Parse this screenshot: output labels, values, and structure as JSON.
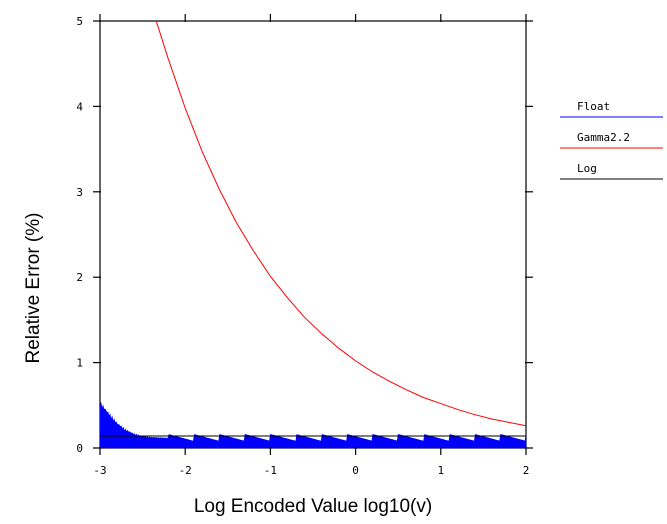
{
  "chart_data": {
    "type": "line",
    "title": "",
    "xlabel": "Log Encoded Value log10(v)",
    "ylabel": "Relative Error (%)",
    "xlim": [
      -3,
      2
    ],
    "ylim": [
      0,
      5
    ],
    "xticks": [
      -3,
      -2,
      -1,
      0,
      1,
      2
    ],
    "yticks": [
      0,
      1,
      2,
      3,
      4,
      5
    ],
    "grid": false,
    "legend_position": "right",
    "series": [
      {
        "name": "Float",
        "color": "#0000ff",
        "style": "dense-sawtooth-band",
        "points": [
          [
            -3.0,
            0.55
          ],
          [
            -2.9,
            0.42
          ],
          [
            -2.8,
            0.3
          ],
          [
            -2.7,
            0.22
          ],
          [
            -2.6,
            0.17
          ],
          [
            -2.5,
            0.14
          ],
          [
            -2.4,
            0.13
          ],
          [
            -2.2,
            0.12
          ],
          [
            -1.8,
            0.12
          ],
          [
            -1.0,
            0.12
          ],
          [
            0.0,
            0.12
          ],
          [
            1.0,
            0.12
          ],
          [
            2.0,
            0.12
          ]
        ],
        "sawtooth": {
          "x_start": -2.2,
          "period": 0.3,
          "peak": 0.16,
          "trough": 0.08
        }
      },
      {
        "name": "Gamma2.2",
        "color": "#ff0000",
        "x": [
          -2.34,
          -2.2,
          -2.0,
          -1.8,
          -1.6,
          -1.4,
          -1.2,
          -1.0,
          -0.8,
          -0.6,
          -0.4,
          -0.2,
          0.0,
          0.2,
          0.4,
          0.6,
          0.8,
          1.0,
          1.2,
          1.4,
          1.6,
          1.8,
          2.0
        ],
        "values": [
          5.0,
          4.56,
          3.98,
          3.47,
          3.03,
          2.64,
          2.31,
          2.01,
          1.76,
          1.53,
          1.34,
          1.17,
          1.02,
          0.89,
          0.78,
          0.68,
          0.59,
          0.52,
          0.45,
          0.39,
          0.34,
          0.3,
          0.26
        ]
      },
      {
        "name": "Log",
        "color": "#000000",
        "x": [
          -3,
          2
        ],
        "values": [
          0.14,
          0.14
        ]
      }
    ]
  }
}
